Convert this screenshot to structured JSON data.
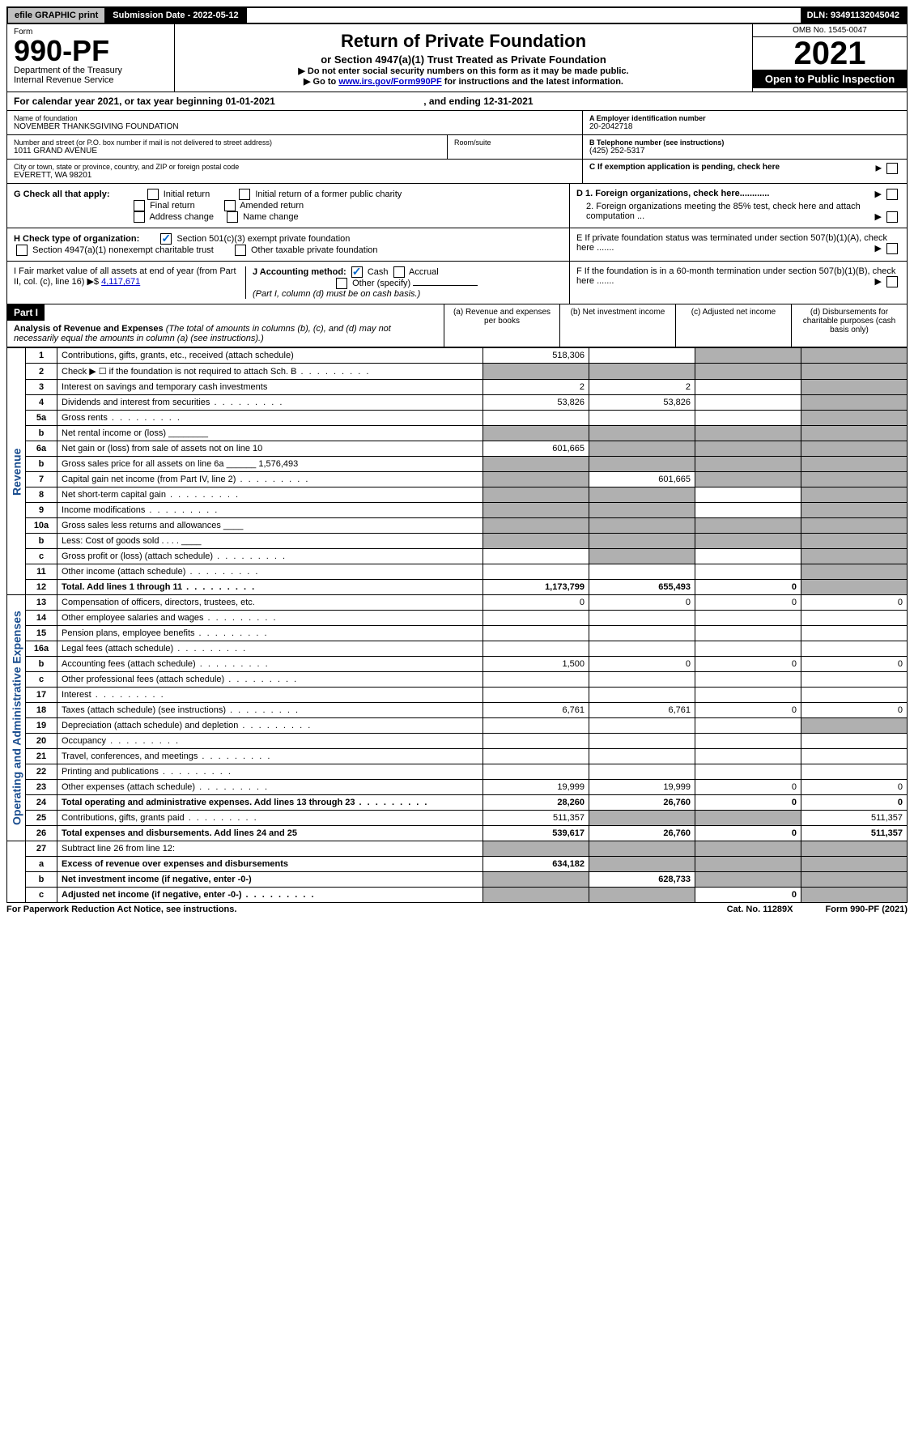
{
  "topbar": {
    "efile": "efile GRAPHIC print",
    "submission": "Submission Date - 2022-05-12",
    "dln": "DLN: 93491132045042"
  },
  "header": {
    "form_label": "Form",
    "form_no": "990-PF",
    "dept": "Department of the Treasury",
    "irs": "Internal Revenue Service",
    "title": "Return of Private Foundation",
    "subtitle": "or Section 4947(a)(1) Trust Treated as Private Foundation",
    "line1": "▶ Do not enter social security numbers on this form as it may be made public.",
    "line2_pre": "▶ Go to ",
    "line2_link": "www.irs.gov/Form990PF",
    "line2_post": " for instructions and the latest information.",
    "omb": "OMB No. 1545-0047",
    "year": "2021",
    "open": "Open to Public Inspection"
  },
  "calendar": {
    "text_pre": "For calendar year 2021, or tax year beginning ",
    "begin": "01-01-2021",
    "text_mid": " , and ending ",
    "end": "12-31-2021"
  },
  "entity": {
    "name_label": "Name of foundation",
    "name": "NOVEMBER THANKSGIVING FOUNDATION",
    "addr_label": "Number and street (or P.O. box number if mail is not delivered to street address)",
    "addr": "1011 GRAND AVENUE",
    "room_label": "Room/suite",
    "room": "",
    "city_label": "City or town, state or province, country, and ZIP or foreign postal code",
    "city": "EVERETT, WA  98201",
    "ein_label": "A Employer identification number",
    "ein": "20-2042718",
    "phone_label": "B Telephone number (see instructions)",
    "phone": "(425) 252-5317",
    "c_label": "C If exemption application is pending, check here"
  },
  "checks": {
    "g_label": "G Check all that apply:",
    "g_opts": [
      "Initial return",
      "Initial return of a former public charity",
      "Final return",
      "Amended return",
      "Address change",
      "Name change"
    ],
    "h_label": "H Check type of organization:",
    "h_501c3": "Section 501(c)(3) exempt private foundation",
    "h_4947": "Section 4947(a)(1) nonexempt charitable trust",
    "h_other": "Other taxable private foundation",
    "i_label": "I Fair market value of all assets at end of year (from Part II, col. (c), line 16) ▶$ ",
    "i_value": "4,117,671",
    "j_label": "J Accounting method:",
    "j_cash": "Cash",
    "j_accrual": "Accrual",
    "j_other": "Other (specify)",
    "j_note": "(Part I, column (d) must be on cash basis.)",
    "d1": "D 1. Foreign organizations, check here............",
    "d2": "2. Foreign organizations meeting the 85% test, check here and attach computation ...",
    "e": "E  If private foundation status was terminated under section 507(b)(1)(A), check here .......",
    "f": "F  If the foundation is in a 60-month termination under section 507(b)(1)(B), check here .......",
    "arrow": "▶"
  },
  "part1": {
    "label": "Part I",
    "title": "Analysis of Revenue and Expenses",
    "title_note": " (The total of amounts in columns (b), (c), and (d) may not necessarily equal the amounts in column (a) (see instructions).)",
    "col_a": "(a)  Revenue and expenses per books",
    "col_b": "(b)  Net investment income",
    "col_c": "(c)  Adjusted net income",
    "col_d": "(d)  Disbursements for charitable purposes (cash basis only)"
  },
  "side": {
    "revenue": "Revenue",
    "expenses": "Operating and Administrative Expenses"
  },
  "rows": [
    {
      "n": "1",
      "d": "Contributions, gifts, grants, etc., received (attach schedule)",
      "a": "518,306",
      "b": "",
      "c": "S",
      "dcol": "S"
    },
    {
      "n": "2",
      "d": "Check ▶ ☐ if the foundation is not required to attach Sch. B",
      "a": "S",
      "b": "S",
      "c": "S",
      "dcol": "S",
      "dots": true
    },
    {
      "n": "3",
      "d": "Interest on savings and temporary cash investments",
      "a": "2",
      "b": "2",
      "c": "",
      "dcol": "S"
    },
    {
      "n": "4",
      "d": "Dividends and interest from securities",
      "a": "53,826",
      "b": "53,826",
      "c": "",
      "dcol": "S",
      "dots": true
    },
    {
      "n": "5a",
      "d": "Gross rents",
      "a": "",
      "b": "",
      "c": "",
      "dcol": "S",
      "dots": true
    },
    {
      "n": "b",
      "d": "Net rental income or (loss) ________",
      "a": "S",
      "b": "S",
      "c": "S",
      "dcol": "S"
    },
    {
      "n": "6a",
      "d": "Net gain or (loss) from sale of assets not on line 10",
      "a": "601,665",
      "b": "S",
      "c": "S",
      "dcol": "S"
    },
    {
      "n": "b",
      "d": "Gross sales price for all assets on line 6a ______ 1,576,493",
      "a": "S",
      "b": "S",
      "c": "S",
      "dcol": "S"
    },
    {
      "n": "7",
      "d": "Capital gain net income (from Part IV, line 2)",
      "a": "S",
      "b": "601,665",
      "c": "S",
      "dcol": "S",
      "dots": true
    },
    {
      "n": "8",
      "d": "Net short-term capital gain",
      "a": "S",
      "b": "S",
      "c": "",
      "dcol": "S",
      "dots": true
    },
    {
      "n": "9",
      "d": "Income modifications",
      "a": "S",
      "b": "S",
      "c": "",
      "dcol": "S",
      "dots": true
    },
    {
      "n": "10a",
      "d": "Gross sales less returns and allowances ____",
      "a": "S",
      "b": "S",
      "c": "S",
      "dcol": "S"
    },
    {
      "n": "b",
      "d": "Less: Cost of goods sold   .  .  .  .  ____",
      "a": "S",
      "b": "S",
      "c": "S",
      "dcol": "S"
    },
    {
      "n": "c",
      "d": "Gross profit or (loss) (attach schedule)",
      "a": "",
      "b": "S",
      "c": "",
      "dcol": "S",
      "dots": true
    },
    {
      "n": "11",
      "d": "Other income (attach schedule)",
      "a": "",
      "b": "",
      "c": "",
      "dcol": "S",
      "dots": true
    },
    {
      "n": "12",
      "d": "Total. Add lines 1 through 11",
      "a": "1,173,799",
      "b": "655,493",
      "c": "0",
      "dcol": "S",
      "bold": true,
      "dots": true
    }
  ],
  "exp_rows": [
    {
      "n": "13",
      "d": "Compensation of officers, directors, trustees, etc.",
      "a": "0",
      "b": "0",
      "c": "0",
      "dcol": "0"
    },
    {
      "n": "14",
      "d": "Other employee salaries and wages",
      "a": "",
      "b": "",
      "c": "",
      "dcol": "",
      "dots": true
    },
    {
      "n": "15",
      "d": "Pension plans, employee benefits",
      "a": "",
      "b": "",
      "c": "",
      "dcol": "",
      "dots": true
    },
    {
      "n": "16a",
      "d": "Legal fees (attach schedule)",
      "a": "",
      "b": "",
      "c": "",
      "dcol": "",
      "dots": true
    },
    {
      "n": "b",
      "d": "Accounting fees (attach schedule)",
      "a": "1,500",
      "b": "0",
      "c": "0",
      "dcol": "0",
      "dots": true
    },
    {
      "n": "c",
      "d": "Other professional fees (attach schedule)",
      "a": "",
      "b": "",
      "c": "",
      "dcol": "",
      "dots": true
    },
    {
      "n": "17",
      "d": "Interest",
      "a": "",
      "b": "",
      "c": "",
      "dcol": "",
      "dots": true
    },
    {
      "n": "18",
      "d": "Taxes (attach schedule) (see instructions)",
      "a": "6,761",
      "b": "6,761",
      "c": "0",
      "dcol": "0",
      "dots": true
    },
    {
      "n": "19",
      "d": "Depreciation (attach schedule) and depletion",
      "a": "",
      "b": "",
      "c": "",
      "dcol": "S",
      "dots": true
    },
    {
      "n": "20",
      "d": "Occupancy",
      "a": "",
      "b": "",
      "c": "",
      "dcol": "",
      "dots": true
    },
    {
      "n": "21",
      "d": "Travel, conferences, and meetings",
      "a": "",
      "b": "",
      "c": "",
      "dcol": "",
      "dots": true
    },
    {
      "n": "22",
      "d": "Printing and publications",
      "a": "",
      "b": "",
      "c": "",
      "dcol": "",
      "dots": true
    },
    {
      "n": "23",
      "d": "Other expenses (attach schedule)",
      "a": "19,999",
      "b": "19,999",
      "c": "0",
      "dcol": "0",
      "dots": true
    },
    {
      "n": "24",
      "d": "Total operating and administrative expenses. Add lines 13 through 23",
      "a": "28,260",
      "b": "26,760",
      "c": "0",
      "dcol": "0",
      "bold": true,
      "dots": true
    },
    {
      "n": "25",
      "d": "Contributions, gifts, grants paid",
      "a": "511,357",
      "b": "S",
      "c": "S",
      "dcol": "511,357",
      "dots": true
    },
    {
      "n": "26",
      "d": "Total expenses and disbursements. Add lines 24 and 25",
      "a": "539,617",
      "b": "26,760",
      "c": "0",
      "dcol": "511,357",
      "bold": true
    }
  ],
  "net_rows": [
    {
      "n": "27",
      "d": "Subtract line 26 from line 12:",
      "a": "S",
      "b": "S",
      "c": "S",
      "dcol": "S"
    },
    {
      "n": "a",
      "d": "Excess of revenue over expenses and disbursements",
      "a": "634,182",
      "b": "S",
      "c": "S",
      "dcol": "S",
      "bold": true
    },
    {
      "n": "b",
      "d": "Net investment income (if negative, enter -0-)",
      "a": "S",
      "b": "628,733",
      "c": "S",
      "dcol": "S",
      "bold": true
    },
    {
      "n": "c",
      "d": "Adjusted net income (if negative, enter -0-)",
      "a": "S",
      "b": "S",
      "c": "0",
      "dcol": "S",
      "bold": true,
      "dots": true
    }
  ],
  "footer": {
    "left": "For Paperwork Reduction Act Notice, see instructions.",
    "mid": "Cat. No. 11289X",
    "right": "Form 990-PF (2021)"
  }
}
